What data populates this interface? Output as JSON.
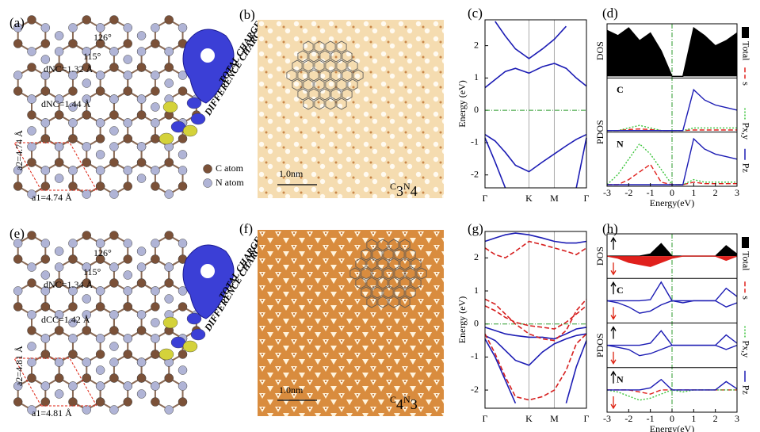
{
  "figure": {
    "a": {
      "label": "(a)",
      "annotations": [
        "126°",
        "115°",
        "dNC=1.32 Å",
        "dNC=1.44 Å",
        "a2=4.74 Å",
        "a1=4.74 Å"
      ],
      "legend": [
        "C atom",
        "N atom"
      ],
      "charge": [
        "TOTAL CHARGE",
        "DIFFERENCE CHARGE"
      ]
    },
    "b": {
      "label": "(b)",
      "scale_bar": "1.0nm",
      "formula": [
        "C",
        "3",
        "N",
        "4"
      ]
    },
    "e": {
      "label": "(e)",
      "annotations": [
        "126°",
        "115°",
        "dNC=1.34 Å",
        "dCC=1.42 Å",
        "a2=4.81 Å",
        "a1=4.81 Å"
      ],
      "charge": [
        "TOTAL CHARGE",
        "DIFFERENCE CHARGE"
      ]
    },
    "f": {
      "label": "(f)",
      "scale_bar": "1.0nm",
      "formula": [
        "C",
        "4",
        "N",
        "3"
      ]
    }
  },
  "chart_data": [
    {
      "type": "bands",
      "label": "(c)",
      "ylabel": "Energy (eV)",
      "x": [
        0,
        0.3,
        0.6,
        0.9,
        1.3,
        1.7,
        2.05,
        2.4,
        2.7,
        3
      ],
      "xlim": [
        0,
        3
      ],
      "xticks": [
        {
          "value": 0,
          "label": "Γ"
        },
        {
          "value": 1.3,
          "label": "K"
        },
        {
          "value": 2.05,
          "label": "M"
        },
        {
          "value": 3,
          "label": "Γ"
        }
      ],
      "ylim": [
        -2.4,
        2.8
      ],
      "yticks": [
        -2,
        -1,
        0,
        1,
        2
      ],
      "fermi_level": 0,
      "series": [
        {
          "color": "#1c1cb4",
          "style": "solid",
          "values": [
            0.7,
            0.95,
            1.2,
            1.3,
            1.15,
            1.35,
            1.45,
            1.3,
            1.0,
            0.75
          ]
        },
        {
          "color": "#1c1cb4",
          "style": "solid",
          "values": [
            null,
            2.75,
            2.3,
            1.9,
            1.6,
            1.9,
            2.2,
            2.6,
            null,
            null
          ]
        },
        {
          "color": "#1c1cb4",
          "style": "solid",
          "values": [
            -0.75,
            -0.95,
            -1.3,
            -1.7,
            -1.9,
            -1.6,
            -1.35,
            -1.1,
            -0.9,
            -0.75
          ]
        },
        {
          "color": "#1c1cb4",
          "style": "solid",
          "values": [
            -0.85,
            -1.6,
            -2.4,
            null,
            null,
            null,
            null,
            null,
            -2.4,
            -0.85
          ]
        }
      ]
    },
    {
      "type": "dos",
      "label": "(d)",
      "xlabel": "Energy(eV)",
      "ylabels": [
        "DOS",
        "PDOS"
      ],
      "x": [
        -3,
        -2.5,
        -2,
        -1.5,
        -1,
        -0.5,
        0,
        0.5,
        1,
        1.5,
        2,
        2.5,
        3
      ],
      "xlim": [
        -3,
        3
      ],
      "xticks": [
        -3,
        -2,
        -1,
        0,
        1,
        2,
        3
      ],
      "fermi_level": 0,
      "spin": false,
      "panels": [
        {
          "ylim": [
            0,
            1
          ],
          "series": [
            {
              "name": "Total",
              "color": "#000000",
              "style": "solid",
              "fill": true,
              "values": [
                0.9,
                0.8,
                0.95,
                0.7,
                0.85,
                0.5,
                0,
                0,
                0.95,
                0.8,
                0.6,
                0.7,
                0.85
              ]
            }
          ]
        },
        {
          "label": "C",
          "ylim": [
            0,
            1
          ],
          "series": [
            {
              "color": "#e0201c",
              "style": "dashed",
              "values": [
                0,
                0,
                0.02,
                0.03,
                0.02,
                0,
                0,
                0,
                0.01,
                0.01,
                0.01,
                0.01,
                0.01
              ]
            },
            {
              "color": "#3cc43c",
              "style": "dotted",
              "values": [
                0,
                0,
                0.05,
                0.1,
                0.05,
                0,
                0,
                0,
                0.05,
                0.05,
                0.05,
                0.05,
                0.05
              ]
            },
            {
              "color": "#1c1cb4",
              "style": "solid",
              "values": [
                0,
                0,
                0,
                0,
                0,
                0,
                0,
                0,
                0.8,
                0.6,
                0.5,
                0.45,
                0.4
              ]
            }
          ]
        },
        {
          "label": "N",
          "ylim": [
            0,
            1
          ],
          "series": [
            {
              "name": "s",
              "color": "#e0201c",
              "style": "dashed",
              "values": [
                0,
                0,
                0.1,
                0.25,
                0.4,
                0.05,
                0,
                0,
                0.05,
                0.02,
                0.02,
                0.02,
                0.02
              ]
            },
            {
              "name": "Px,y",
              "color": "#3cc43c",
              "style": "dotted",
              "values": [
                0,
                0.2,
                0.5,
                0.8,
                0.6,
                0.3,
                0,
                0,
                0.1,
                0.05,
                0.05,
                0.05,
                0.05
              ]
            },
            {
              "name": "Pz",
              "color": "#1c1cb4",
              "style": "solid",
              "values": [
                0,
                0,
                0,
                0,
                0,
                0,
                0,
                0,
                0.9,
                0.7,
                0.6,
                0.55,
                0.5
              ]
            }
          ]
        }
      ]
    },
    {
      "type": "bands",
      "label": "(g)",
      "ylabel": "Energy (eV)",
      "x": [
        0,
        0.3,
        0.6,
        0.9,
        1.3,
        1.7,
        2.05,
        2.4,
        2.7,
        3
      ],
      "xlim": [
        0,
        3
      ],
      "xticks": [
        {
          "value": 0,
          "label": "Γ"
        },
        {
          "value": 1.3,
          "label": "K"
        },
        {
          "value": 2.05,
          "label": "M"
        },
        {
          "value": 3,
          "label": "Γ"
        }
      ],
      "ylim": [
        -2.55,
        2.8
      ],
      "yticks": [
        -2,
        -1,
        0,
        1,
        2
      ],
      "fermi_level": 0,
      "series": [
        {
          "color": "#1c1cb4",
          "style": "solid",
          "values": [
            -0.35,
            -0.5,
            -0.8,
            -1.1,
            -1.25,
            -0.85,
            -0.6,
            -0.45,
            -0.35,
            -0.3
          ]
        },
        {
          "color": "#1c1cb4",
          "style": "solid",
          "values": [
            -0.1,
            -0.2,
            -0.3,
            -0.35,
            -0.4,
            -0.4,
            -0.45,
            -0.3,
            -0.15,
            -0.1
          ]
        },
        {
          "color": "#1c1cb4",
          "style": "solid",
          "values": [
            -0.45,
            -1.0,
            -1.7,
            -2.4,
            null,
            null,
            null,
            -2.4,
            -1.3,
            -0.5
          ]
        },
        {
          "color": "#1c1cb4",
          "style": "solid",
          "values": [
            2.5,
            2.6,
            2.7,
            2.75,
            2.7,
            2.6,
            2.5,
            2.45,
            2.45,
            2.5
          ]
        },
        {
          "color": "#d62020",
          "style": "dashed",
          "values": [
            0.75,
            0.6,
            0.3,
            0,
            -0.3,
            -0.45,
            -0.5,
            -0.2,
            0.4,
            0.75
          ]
        },
        {
          "color": "#d62020",
          "style": "dashed",
          "values": [
            0.55,
            0.4,
            0.2,
            0.05,
            -0.05,
            -0.1,
            -0.15,
            0.05,
            0.3,
            0.55
          ]
        },
        {
          "color": "#d62020",
          "style": "dashed",
          "values": [
            -0.3,
            -0.9,
            -1.6,
            -2.2,
            -2.3,
            -2.2,
            -2.0,
            -1.4,
            -0.6,
            -0.3
          ]
        },
        {
          "color": "#d62020",
          "style": "dashed",
          "values": [
            2.3,
            2.1,
            2.0,
            2.2,
            2.5,
            2.4,
            2.3,
            2.2,
            2.1,
            2.3
          ]
        }
      ]
    },
    {
      "type": "dos",
      "label": "(h)",
      "xlabel": "Energy(eV)",
      "ylabels": [
        "DOS",
        "PDOS"
      ],
      "x": [
        -3,
        -2.5,
        -2,
        -1.5,
        -1,
        -0.5,
        0,
        0.5,
        1,
        1.5,
        2,
        2.5,
        3
      ],
      "xlim": [
        -3,
        3
      ],
      "xticks": [
        -3,
        -2,
        -1,
        0,
        1,
        2,
        3
      ],
      "fermi_level": 0,
      "spin": true,
      "panels": [
        {
          "ylim": [
            -1,
            1
          ],
          "series": [
            {
              "name": "Total",
              "color": "#000000",
              "style": "solid",
              "fill": true,
              "values": [
                0,
                0,
                0,
                0,
                0.1,
                0.6,
                0,
                0,
                0,
                0,
                0,
                0.5,
                0.1
              ]
            },
            {
              "color": "#e0201c",
              "style": "solid",
              "fill": true,
              "values": [
                0,
                -0.1,
                -0.3,
                -0.4,
                -0.5,
                -0.3,
                -0.1,
                0,
                0,
                0,
                0,
                -0.2,
                0
              ]
            }
          ]
        },
        {
          "label": "C",
          "ylim": [
            -1,
            1
          ],
          "series": [
            {
              "color": "#1c1cb4",
              "style": "solid",
              "values": [
                0,
                0,
                0,
                0,
                0.05,
                0.9,
                0,
                0,
                0,
                0,
                0,
                0.6,
                0.2
              ]
            },
            {
              "color": "#1c1cb4",
              "style": "solid",
              "values": [
                0,
                -0.1,
                -0.3,
                -0.6,
                -0.5,
                -0.2,
                0,
                -0.1,
                0,
                0,
                0,
                -0.3,
                -0.1
              ]
            }
          ]
        },
        {
          "ylim": [
            -1,
            1
          ],
          "series": [
            {
              "color": "#1c1cb4",
              "style": "solid",
              "values": [
                0,
                0,
                0,
                0,
                0.1,
                0.7,
                0,
                0,
                0,
                0,
                0,
                0.5,
                0.1
              ]
            },
            {
              "color": "#1c1cb4",
              "style": "solid",
              "values": [
                0,
                -0.1,
                -0.2,
                -0.5,
                -0.4,
                -0.2,
                0,
                0,
                0,
                0,
                0,
                -0.2,
                0
              ]
            }
          ]
        },
        {
          "label": "N",
          "ylim": [
            -1,
            1
          ],
          "series": [
            {
              "name": "s",
              "color": "#e0201c",
              "style": "dashed",
              "values": [
                0,
                0,
                0,
                -0.1,
                -0.2,
                0,
                0,
                0,
                0,
                0,
                0,
                0,
                0
              ]
            },
            {
              "name": "Px,y",
              "color": "#3cc43c",
              "style": "dotted",
              "values": [
                0,
                -0.1,
                -0.3,
                -0.5,
                -0.4,
                -0.2,
                0,
                -0.1,
                0,
                0,
                0,
                0,
                0
              ]
            },
            {
              "name": "Pz",
              "color": "#1c1cb4",
              "style": "solid",
              "values": [
                0,
                0,
                0,
                0,
                0.1,
                0.5,
                0,
                0,
                0,
                0,
                0,
                0.4,
                0.05
              ]
            }
          ]
        }
      ]
    }
  ]
}
